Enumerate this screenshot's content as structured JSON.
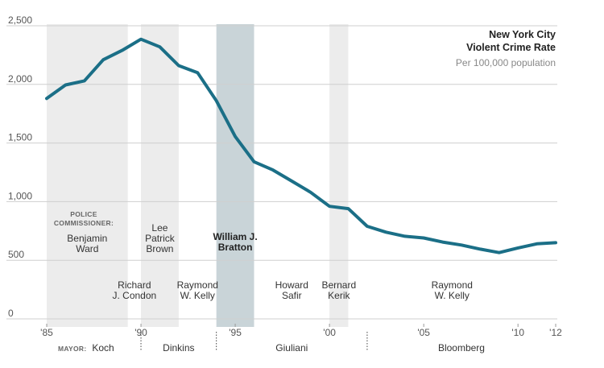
{
  "chart_data": {
    "type": "line",
    "title": "New York City",
    "title_line2": "Violent Crime Rate",
    "subtitle": "Per 100,000 population",
    "ylim": [
      0,
      2500
    ],
    "yticks": [
      {
        "value": 0,
        "label": "0"
      },
      {
        "value": 500,
        "label": "500"
      },
      {
        "value": 1000,
        "label": "1,000"
      },
      {
        "value": 1500,
        "label": "1,500"
      },
      {
        "value": 2000,
        "label": "2,000"
      },
      {
        "value": 2500,
        "label": "2,500"
      }
    ],
    "xlim": [
      1985,
      2012
    ],
    "xticks": [
      {
        "value": 1985,
        "label": "'85"
      },
      {
        "value": 1990,
        "label": "'90"
      },
      {
        "value": 1995,
        "label": "'95"
      },
      {
        "value": 2000,
        "label": "'00"
      },
      {
        "value": 2005,
        "label": "'05"
      },
      {
        "value": 2010,
        "label": "'10"
      },
      {
        "value": 2012,
        "label": "'12"
      }
    ],
    "x": [
      1985,
      1986,
      1987,
      1988,
      1989,
      1990,
      1991,
      1992,
      1993,
      1994,
      1995,
      1996,
      1997,
      1998,
      1999,
      2000,
      2001,
      2002,
      2003,
      2004,
      2005,
      2006,
      2007,
      2008,
      2009,
      2010,
      2011,
      2012
    ],
    "values": [
      1880,
      1995,
      2030,
      2210,
      2290,
      2385,
      2320,
      2160,
      2100,
      1860,
      1555,
      1340,
      1270,
      1175,
      1080,
      960,
      940,
      790,
      740,
      705,
      690,
      655,
      630,
      595,
      565,
      605,
      640,
      650
    ],
    "line_color": "#1b6f87",
    "commissioners_label": "POLICE COMMISSIONER:",
    "commissioners": [
      {
        "name": "Benjamin Ward",
        "start": 1985,
        "end": 1989.3,
        "shade": "light",
        "lines": [
          "Benjamin",
          "Ward"
        ],
        "row": "upper"
      },
      {
        "name": "Richard J. Condon",
        "start": 1989.3,
        "end": 1990,
        "shade": "none",
        "lines": [
          "Richard",
          "J. Condon"
        ],
        "row": "lower"
      },
      {
        "name": "Lee Patrick Brown",
        "start": 1990,
        "end": 1992,
        "shade": "light",
        "lines": [
          "Lee",
          "Patrick",
          "Brown"
        ],
        "row": "upper"
      },
      {
        "name": "Raymond W. Kelly",
        "start": 1992,
        "end": 1994,
        "shade": "none",
        "lines": [
          "Raymond",
          "W. Kelly"
        ],
        "row": "lower"
      },
      {
        "name": "William J. Bratton",
        "start": 1994,
        "end": 1996,
        "shade": "dark",
        "lines": [
          "William J.",
          "Bratton"
        ],
        "row": "upper",
        "bold": true
      },
      {
        "name": "Howard Safir",
        "start": 1996,
        "end": 2000,
        "shade": "none",
        "lines": [
          "Howard",
          "Safir"
        ],
        "row": "lower"
      },
      {
        "name": "Bernard Kerik",
        "start": 2000,
        "end": 2001,
        "shade": "light",
        "lines": [
          "Bernard",
          "Kerik"
        ],
        "row": "lower"
      },
      {
        "name": "Raymond W. Kelly",
        "start": 2001,
        "end": 2012,
        "shade": "none",
        "lines": [
          "Raymond",
          "W. Kelly"
        ],
        "row": "lower"
      }
    ],
    "mayor_label": "MAYOR:",
    "mayors": [
      {
        "name": "Koch",
        "start": 1985,
        "end": 1990
      },
      {
        "name": "Dinkins",
        "start": 1990,
        "end": 1994
      },
      {
        "name": "Giuliani",
        "start": 1994,
        "end": 2002
      },
      {
        "name": "Bloomberg",
        "start": 2002,
        "end": 2012
      }
    ]
  }
}
